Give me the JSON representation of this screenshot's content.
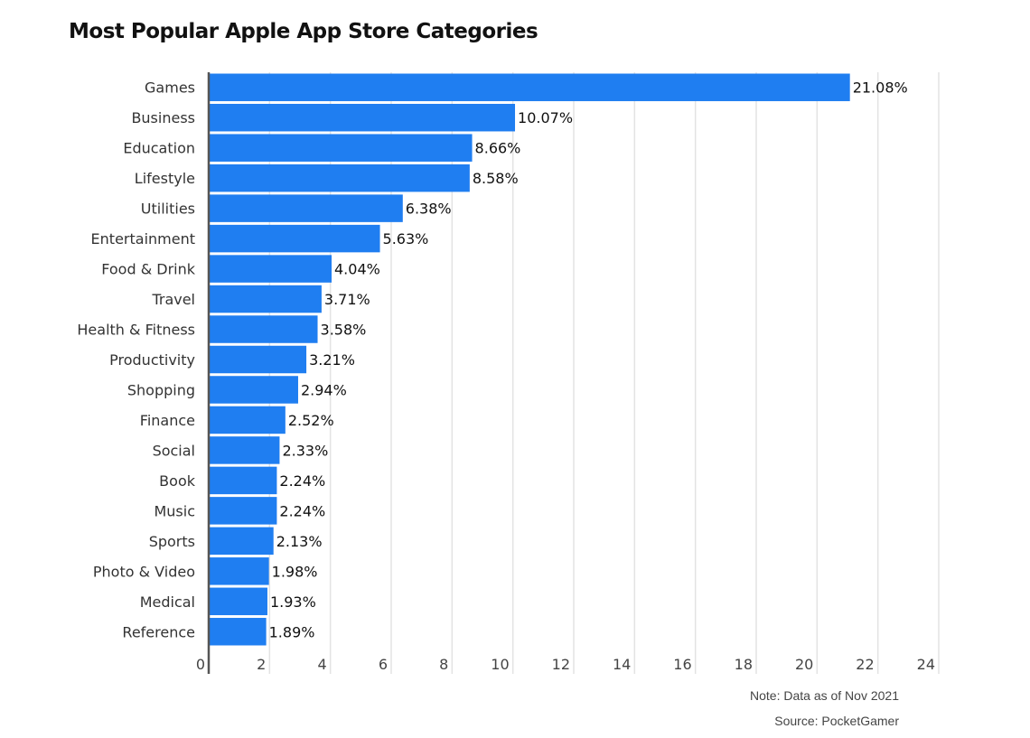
{
  "chart_data": {
    "type": "bar",
    "orientation": "horizontal",
    "title": "Most Popular Apple App Store Categories",
    "categories": [
      "Games",
      "Business",
      "Education",
      "Lifestyle",
      "Utilities",
      "Entertainment",
      "Food & Drink",
      "Travel",
      "Health & Fitness",
      "Productivity",
      "Shopping",
      "Finance",
      "Social",
      "Book",
      "Music",
      "Sports",
      "Photo & Video",
      "Medical",
      "Reference"
    ],
    "values": [
      21.08,
      10.07,
      8.66,
      8.58,
      6.38,
      5.63,
      4.04,
      3.71,
      3.58,
      3.21,
      2.94,
      2.52,
      2.33,
      2.24,
      2.24,
      2.13,
      1.98,
      1.93,
      1.89
    ],
    "value_labels": [
      "21.08%",
      "10.07%",
      "8.66%",
      "8.58%",
      "6.38%",
      "5.63%",
      "4.04%",
      "3.71%",
      "3.58%",
      "3.21%",
      "2.94%",
      "2.52%",
      "2.33%",
      "2.24%",
      "2.24%",
      "2.13%",
      "1.98%",
      "1.93%",
      "1.89%"
    ],
    "xlim": [
      0,
      24
    ],
    "xticks": [
      "0",
      "2",
      "4",
      "6",
      "8",
      "10",
      "12",
      "14",
      "16",
      "18",
      "20",
      "22",
      "24"
    ],
    "grid": true,
    "bar_color": "#1f7ef1"
  },
  "notes": {
    "note": "Note: Data as of Nov 2021",
    "source": "Source: PocketGamer"
  }
}
